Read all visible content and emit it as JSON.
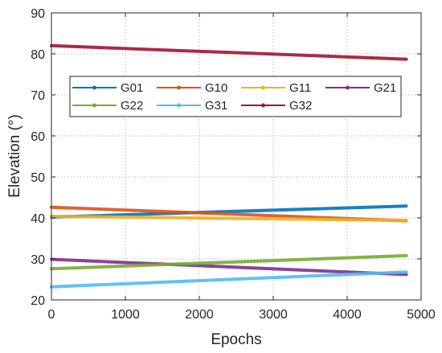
{
  "chart_data": {
    "type": "line",
    "title": "",
    "xlabel": "Epochs",
    "ylabel": "Elevation (°)",
    "xlim": [
      0,
      5000
    ],
    "ylim": [
      20,
      90
    ],
    "xticks": [
      0,
      1000,
      2000,
      3000,
      4000,
      5000
    ],
    "yticks": [
      20,
      30,
      40,
      50,
      60,
      70,
      80,
      90
    ],
    "grid": true,
    "legend_position": "upper-middle, 4 columns",
    "series": [
      {
        "name": "G01",
        "color": "#0072BD",
        "x": [
          0,
          4800
        ],
        "y": [
          40.2,
          42.9
        ]
      },
      {
        "name": "G10",
        "color": "#D95319",
        "x": [
          0,
          4800
        ],
        "y": [
          42.6,
          39.3
        ]
      },
      {
        "name": "G11",
        "color": "#EDB120",
        "x": [
          0,
          4800
        ],
        "y": [
          40.4,
          39.4
        ]
      },
      {
        "name": "G21",
        "color": "#7E2F8E",
        "x": [
          0,
          4800
        ],
        "y": [
          29.9,
          26.2
        ]
      },
      {
        "name": "G22",
        "color": "#77AC30",
        "x": [
          0,
          4800
        ],
        "y": [
          27.6,
          30.8
        ]
      },
      {
        "name": "G31",
        "color": "#4DBEEE",
        "x": [
          0,
          4800
        ],
        "y": [
          23.2,
          26.8
        ]
      },
      {
        "name": "G32",
        "color": "#A2142F",
        "x": [
          0,
          4800
        ],
        "y": [
          82.0,
          78.7
        ]
      }
    ]
  }
}
